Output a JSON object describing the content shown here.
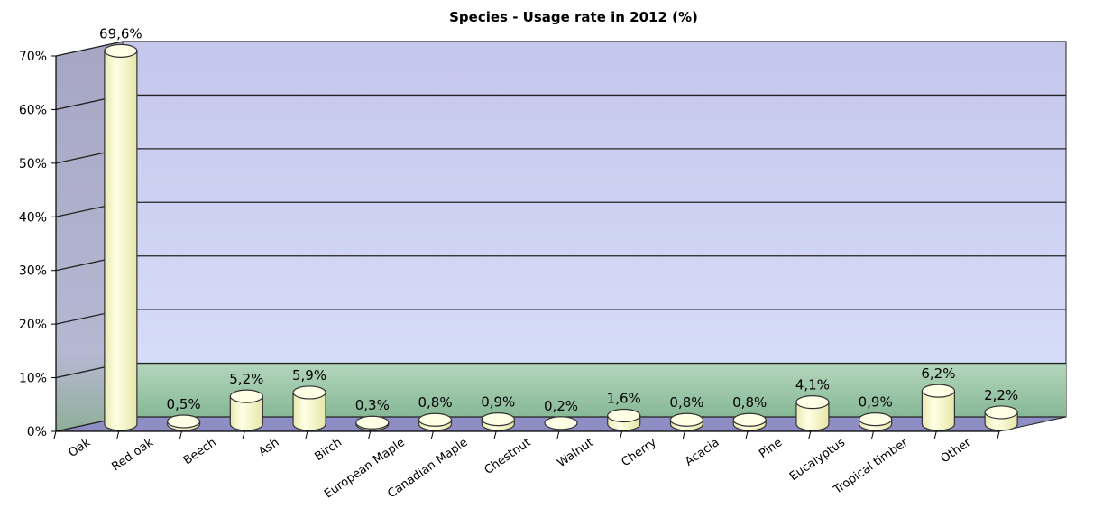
{
  "chart_data": {
    "type": "bar",
    "title": "Species - Usage rate in 2012 (%)",
    "xlabel": "",
    "ylabel": "",
    "ylim": [
      0,
      70
    ],
    "yticks": [
      "0%",
      "10%",
      "20%",
      "30%",
      "40%",
      "50%",
      "60%",
      "70%"
    ],
    "categories": [
      "Oak",
      "Red oak",
      "Beech",
      "Ash",
      "Birch",
      "European Maple",
      "Canadian Maple",
      "Chestnut",
      "Walnut",
      "Cherry",
      "Acacia",
      "Pine",
      "Eucalyptus",
      "Tropical timber",
      "Other"
    ],
    "values": [
      69.6,
      0.5,
      5.2,
      5.9,
      0.3,
      0.8,
      0.9,
      0.2,
      1.6,
      0.8,
      0.8,
      4.1,
      0.9,
      6.2,
      2.2
    ],
    "data_labels": [
      "69,6%",
      "0,5%",
      "5,2%",
      "5,9%",
      "0,3%",
      "0,8%",
      "0,9%",
      "0,2%",
      "1,6%",
      "0,8%",
      "0,8%",
      "4,1%",
      "0,9%",
      "6,2%",
      "2,2%"
    ],
    "grid": true,
    "legend": "none",
    "colors": {
      "bar_fill": "#ffffcc",
      "bar_top": "#ffffe6",
      "bar_stroke": "#333333",
      "wall_top": "#c8c8ee",
      "wall_bottom": "#d6dcf6",
      "wall_band_low": "#9cc4a6",
      "side_wall": "#9a9ab8",
      "floor": "#8e8ec4",
      "gridline": "#222222"
    }
  }
}
